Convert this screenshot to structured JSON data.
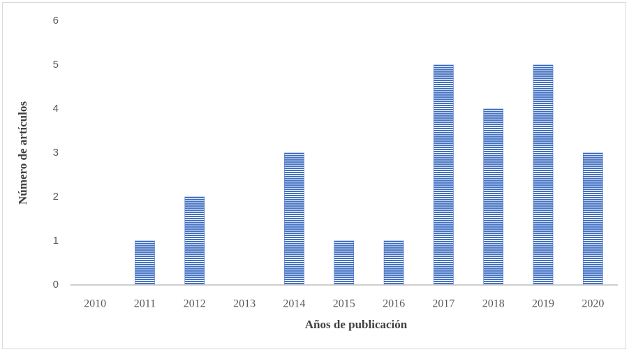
{
  "chart_data": {
    "type": "bar",
    "x_label": "Años de publicación",
    "y_label": "Número de artículos",
    "categories": [
      "2010",
      "2011",
      "2012",
      "2013",
      "2014",
      "2015",
      "2016",
      "2017",
      "2018",
      "2019",
      "2020"
    ],
    "values": [
      0,
      1,
      2,
      0,
      3,
      1,
      1,
      5,
      4,
      5,
      3
    ],
    "color": "#4472c4",
    "ylim": [
      0,
      6
    ],
    "yticks": [
      0,
      1,
      2,
      3,
      4,
      5,
      6
    ],
    "grid": false
  }
}
